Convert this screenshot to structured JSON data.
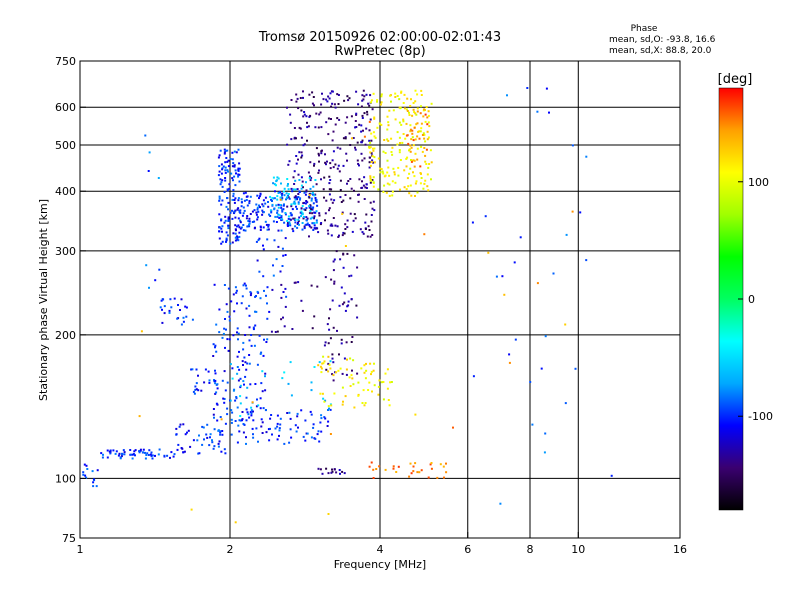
{
  "chart_data": {
    "type": "scatter",
    "title": "Tromsø 20150926 02:00:00-02:01:43",
    "subtitle": "RwPretec (8p)",
    "xlabel": "Frequency [MHz]",
    "ylabel": "Stationary phase Virtual Height [km]",
    "x_scale": "log",
    "y_scale": "log",
    "xlim": [
      1,
      16
    ],
    "ylim": [
      75,
      750
    ],
    "x_ticks": [
      1,
      2,
      4,
      6,
      8,
      10,
      16
    ],
    "x_ticklabels": [
      "1",
      "2",
      "4",
      "6",
      "8",
      "10",
      "16"
    ],
    "x_gridlines": [
      2,
      4,
      6,
      8,
      10
    ],
    "y_ticks": [
      75,
      100,
      200,
      300,
      400,
      500,
      600,
      750
    ],
    "y_ticklabels": [
      "75",
      "100",
      "200",
      "300",
      "400",
      "500",
      "600",
      "750"
    ],
    "y_gridlines": [
      100,
      200,
      300,
      400,
      500,
      600
    ],
    "grid": true,
    "stats": {
      "heading": "Phase",
      "line_o": "mean, sd,O: -93.8, 16.6",
      "line_x": "mean, sd,X:  88.8, 20.0"
    },
    "colorbar": {
      "label": "[deg]",
      "range": [
        -180,
        180
      ],
      "ticks": [
        100,
        0,
        -100
      ],
      "ticklabels": [
        "100",
        "0",
        "-100"
      ],
      "colormap": [
        "#000000",
        "#3a0070",
        "#0000ff",
        "#00a8ff",
        "#00ffff",
        "#00ff60",
        "#00ff00",
        "#a0ff00",
        "#ffff00",
        "#ffa000",
        "#ff0000"
      ]
    },
    "series": [
      {
        "color_phase": -100,
        "clusters": [
          {
            "x": [
              0.98,
              1.1
            ],
            "y": [
              95,
              108
            ],
            "n": 18
          },
          {
            "x": [
              1.1,
              1.55
            ],
            "y": [
              110,
              115
            ],
            "n": 60
          },
          {
            "x": [
              1.55,
              2.0
            ],
            "y": [
              112,
              130
            ],
            "n": 50
          },
          {
            "x": [
              2.0,
              3.2
            ],
            "y": [
              118,
              140
            ],
            "n": 80
          },
          {
            "x": [
              1.85,
              2.4
            ],
            "y": [
              130,
              260
            ],
            "n": 150
          },
          {
            "x": [
              1.6,
              1.9
            ],
            "y": [
              150,
              170
            ],
            "n": 25
          },
          {
            "x": [
              1.45,
              1.7
            ],
            "y": [
              210,
              240
            ],
            "n": 25
          },
          {
            "x": [
              1.9,
              2.1
            ],
            "y": [
              310,
              490
            ],
            "n": 150
          },
          {
            "x": [
              2.1,
              3.0
            ],
            "y": [
              330,
              400
            ],
            "n": 200
          },
          {
            "x": [
              2.25,
              2.6
            ],
            "y": [
              240,
              320
            ],
            "n": 25
          }
        ]
      },
      {
        "color_phase": -140,
        "clusters": [
          {
            "x": [
              2.6,
              3.9
            ],
            "y": [
              320,
              650
            ],
            "n": 320
          },
          {
            "x": [
              3.1,
              3.6
            ],
            "y": [
              160,
              300
            ],
            "n": 60
          },
          {
            "x": [
              2.4,
              3.0
            ],
            "y": [
              200,
              260
            ],
            "n": 20
          },
          {
            "x": [
              3.0,
              3.4
            ],
            "y": [
              102,
              105
            ],
            "n": 15
          }
        ]
      },
      {
        "color_phase": -60,
        "clusters": [
          {
            "x": [
              2.4,
              3.0
            ],
            "y": [
              340,
              430
            ],
            "n": 80
          },
          {
            "x": [
              2.0,
              3.2
            ],
            "y": [
              135,
              180
            ],
            "n": 30
          }
        ]
      },
      {
        "color_phase": 110,
        "clusters": [
          {
            "x": [
              3.8,
              5.1
            ],
            "y": [
              390,
              650
            ],
            "n": 200
          },
          {
            "x": [
              3.0,
              4.3
            ],
            "y": [
              140,
              180
            ],
            "n": 70
          }
        ]
      },
      {
        "color_phase": 150,
        "clusters": [
          {
            "x": [
              4.5,
              5.0
            ],
            "y": [
              450,
              600
            ],
            "n": 40
          },
          {
            "x": [
              3.8,
              5.5
            ],
            "y": [
              100,
              108
            ],
            "n": 30
          }
        ]
      },
      {
        "color_phase": -90,
        "clusters": [
          {
            "x": [
              6.0,
              12.0
            ],
            "y": [
              80,
              660
            ],
            "n": 30
          },
          {
            "x": [
              1.35,
              1.45
            ],
            "y": [
              250,
              530
            ],
            "n": 8
          }
        ]
      },
      {
        "color_phase": 140,
        "clusters": [
          {
            "x": [
              1.2,
              12.0
            ],
            "y": [
              75,
              600
            ],
            "n": 25
          }
        ]
      }
    ]
  }
}
